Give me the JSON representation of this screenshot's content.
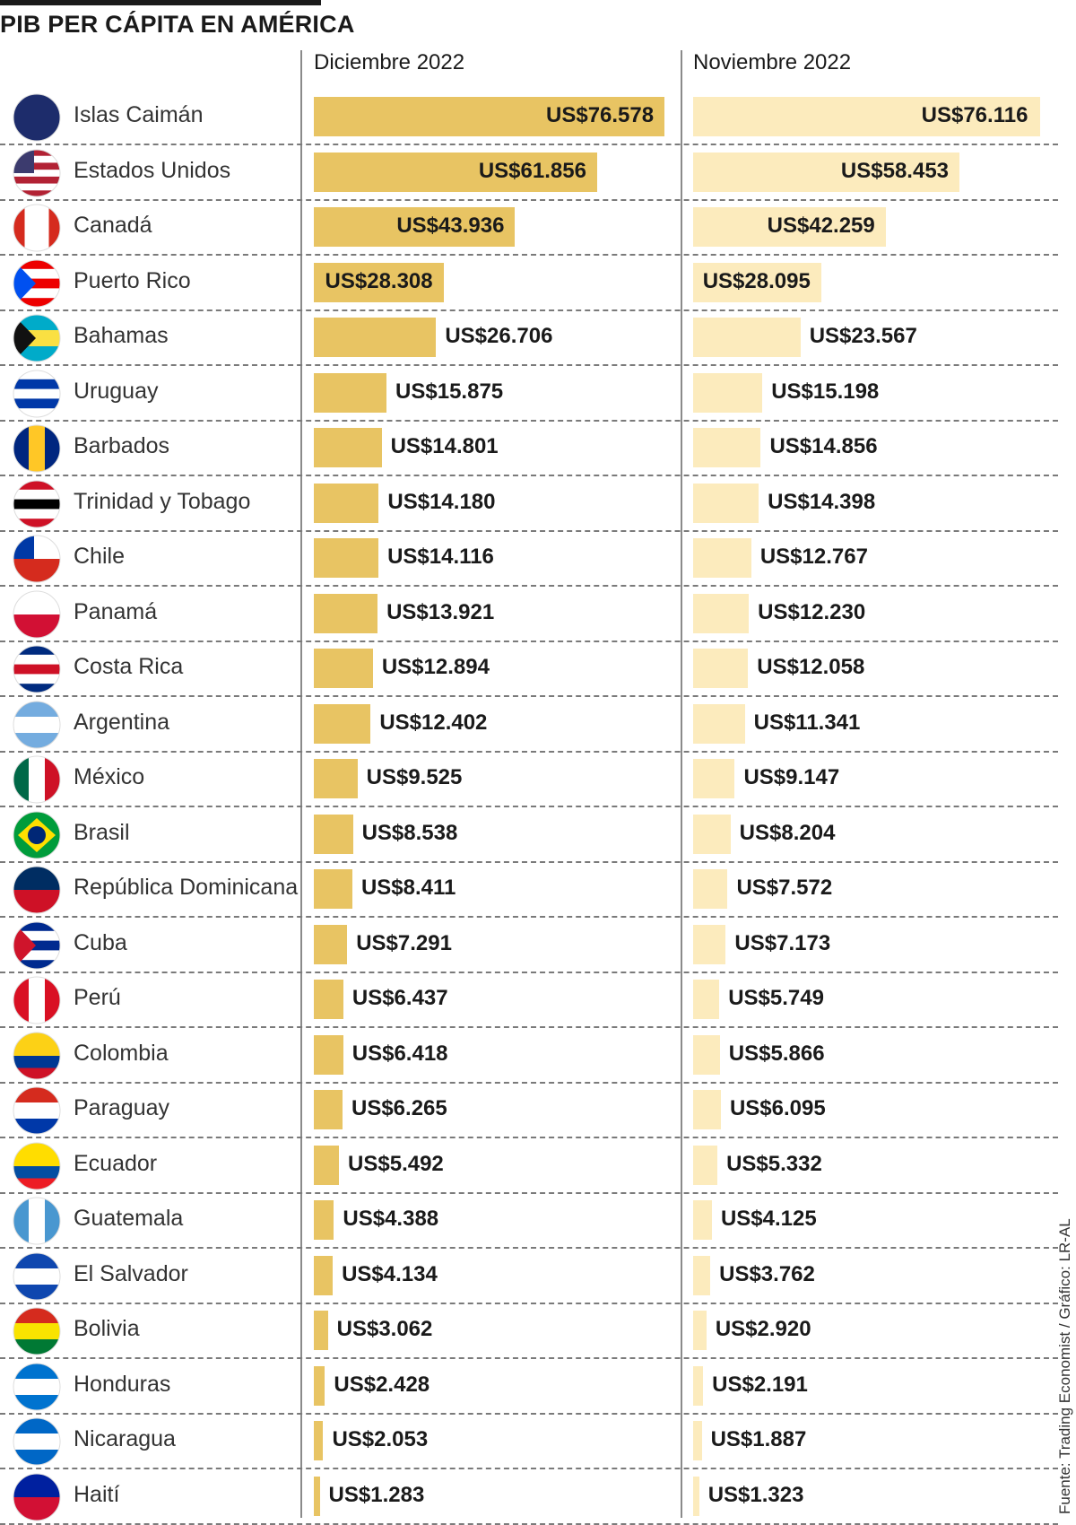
{
  "title": "PIB PER CÁPITA EN AMÉRICA",
  "source": "Fuente: Trading Economist / Gráfico: LR-AL",
  "colors": {
    "dec_bar": "#e8c463",
    "nov_bar": "#fcebbd",
    "rule": "#8a8a8a"
  },
  "chart_data": {
    "type": "bar",
    "orientation": "horizontal",
    "title": "PIB PER CÁPITA EN AMÉRICA",
    "unit": "US$",
    "series": [
      {
        "name": "Diciembre 2022",
        "values": [
          76578,
          61856,
          43936,
          28308,
          26706,
          15875,
          14801,
          14180,
          14116,
          13921,
          12894,
          12402,
          9525,
          8538,
          8411,
          7291,
          6437,
          6418,
          6265,
          5492,
          4388,
          4134,
          3062,
          2428,
          2053,
          1283
        ],
        "labels": [
          "US$76.578",
          "US$61.856",
          "US$43.936",
          "US$28.308",
          "US$26.706",
          "US$15.875",
          "US$14.801",
          "US$14.180",
          "US$14.116",
          "US$13.921",
          "US$12.894",
          "US$12.402",
          "US$9.525",
          "US$8.538",
          "US$8.411",
          "US$7.291",
          "US$6.437",
          "US$6.418",
          "US$6.265",
          "US$5.492",
          "US$4.388",
          "US$4.134",
          "US$3.062",
          "US$2.428",
          "US$2.053",
          "US$1.283"
        ]
      },
      {
        "name": "Noviembre 2022",
        "values": [
          76116,
          58453,
          42259,
          28095,
          23567,
          15198,
          14856,
          14398,
          12767,
          12230,
          12058,
          11341,
          9147,
          8204,
          7572,
          7173,
          5749,
          5866,
          6095,
          5332,
          4125,
          3762,
          2920,
          2191,
          1887,
          1323
        ],
        "labels": [
          "US$76.116",
          "US$58.453",
          "US$42.259",
          "US$28.095",
          "US$23.567",
          "US$15.198",
          "US$14.856",
          "US$14.398",
          "US$12.767",
          "US$12.230",
          "US$12.058",
          "US$11.341",
          "US$9.147",
          "US$8.204",
          "US$7.572",
          "US$7.173",
          "US$5.749",
          "US$5.866",
          "US$6.095",
          "US$5.332",
          "US$4.125",
          "US$3.762",
          "US$2.920",
          "US$2.191",
          "US$1.887",
          "US$1.323"
        ]
      }
    ],
    "categories": [
      "Islas Caimán",
      "Estados Unidos",
      "Canadá",
      "Puerto Rico",
      "Bahamas",
      "Uruguay",
      "Barbados",
      "Trinidad y Tobago",
      "Chile",
      "Panamá",
      "Costa Rica",
      "Argentina",
      "México",
      "Brasil",
      "República Dominicana",
      "Cuba",
      "Perú",
      "Colombia",
      "Paraguay",
      "Ecuador",
      "Guatemala",
      "El Salvador",
      "Bolivia",
      "Honduras",
      "Nicaragua",
      "Haití"
    ],
    "flag_icons": [
      "cayman-islands-flag-icon",
      "usa-flag-icon",
      "canada-flag-icon",
      "puerto-rico-flag-icon",
      "bahamas-flag-icon",
      "uruguay-flag-icon",
      "barbados-flag-icon",
      "trinidad-tobago-flag-icon",
      "chile-flag-icon",
      "panama-flag-icon",
      "costa-rica-flag-icon",
      "argentina-flag-icon",
      "mexico-flag-icon",
      "brazil-flag-icon",
      "dominican-republic-flag-icon",
      "cuba-flag-icon",
      "peru-flag-icon",
      "colombia-flag-icon",
      "paraguay-flag-icon",
      "ecuador-flag-icon",
      "guatemala-flag-icon",
      "el-salvador-flag-icon",
      "bolivia-flag-icon",
      "honduras-flag-icon",
      "nicaragua-flag-icon",
      "haiti-flag-icon"
    ],
    "legend": "column headers"
  }
}
